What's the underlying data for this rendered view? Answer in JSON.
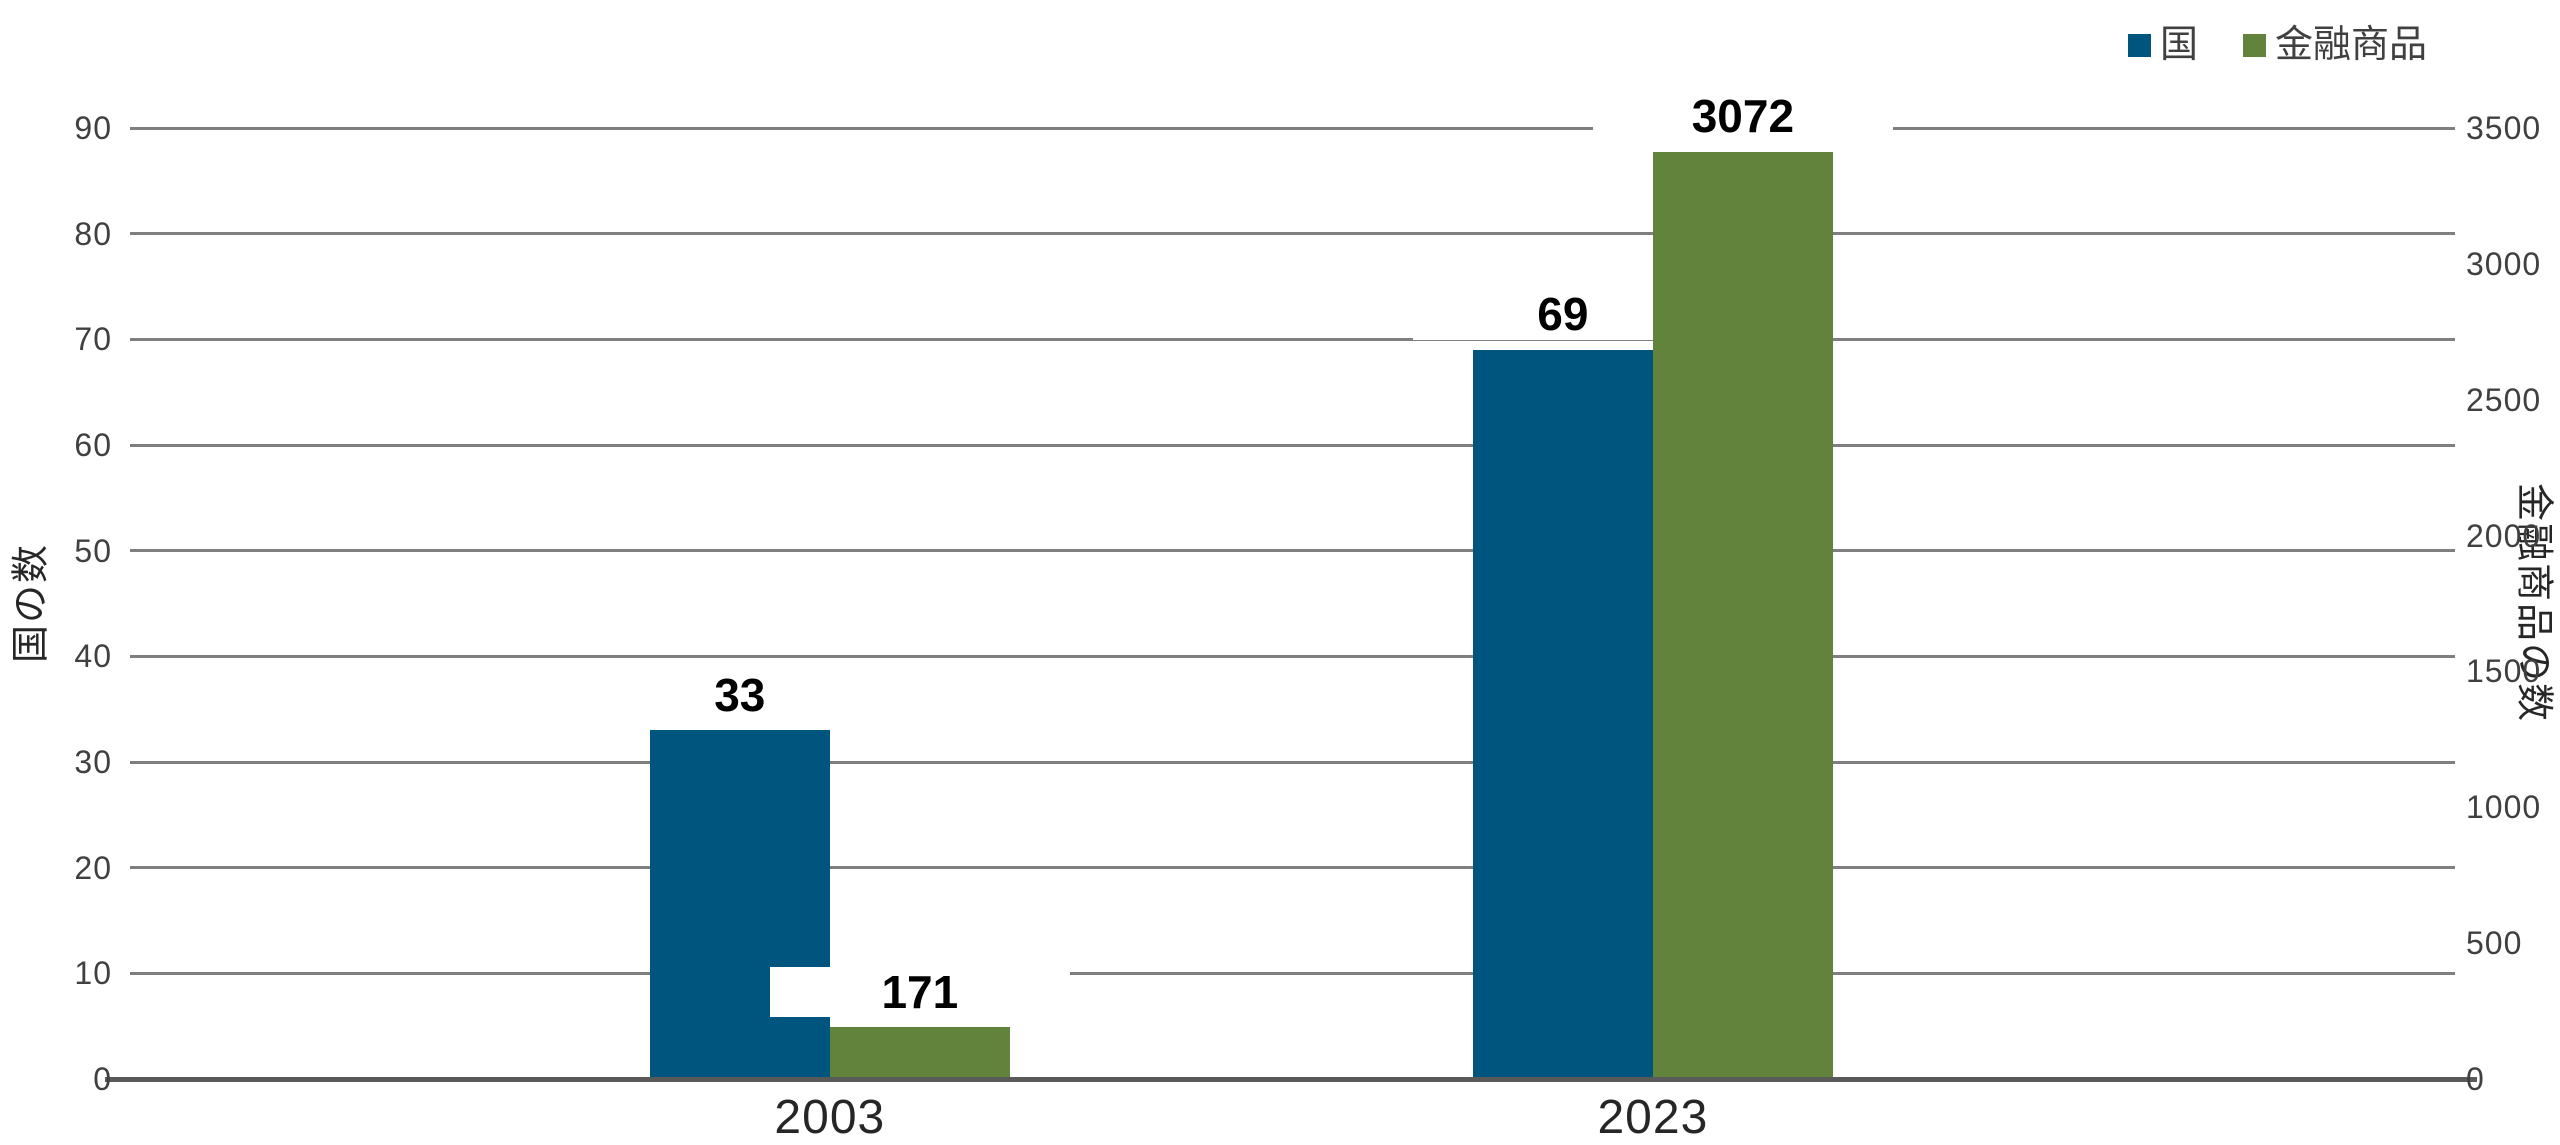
{
  "chart_data": {
    "type": "bar",
    "categories": [
      "2003",
      "2023"
    ],
    "series": [
      {
        "name": "国",
        "axis": "left",
        "color": "#00557F",
        "values": [
          33,
          69
        ]
      },
      {
        "name": "金融商品",
        "axis": "right",
        "color": "#61833B",
        "values": [
          171,
          3072
        ]
      }
    ],
    "left_axis": {
      "title": "国の数",
      "min": 0,
      "max": 90,
      "ticks": [
        0,
        10,
        20,
        30,
        40,
        50,
        60,
        70,
        80,
        90
      ]
    },
    "right_axis": {
      "title": "金融商品の数",
      "min": 0,
      "max": 3500,
      "ticks": [
        0,
        500,
        1000,
        1500,
        2000,
        2500,
        3000,
        3500
      ],
      "plotted_max": 3150
    },
    "grid": true,
    "legend_position": "top-right",
    "data_labels": [
      [
        "33",
        "69"
      ],
      [
        "171",
        "3072"
      ]
    ],
    "colors": {
      "grid": "#7F7F7F",
      "axis_line": "#595959",
      "tick_text": "#404040",
      "label_text": "#000000"
    }
  }
}
